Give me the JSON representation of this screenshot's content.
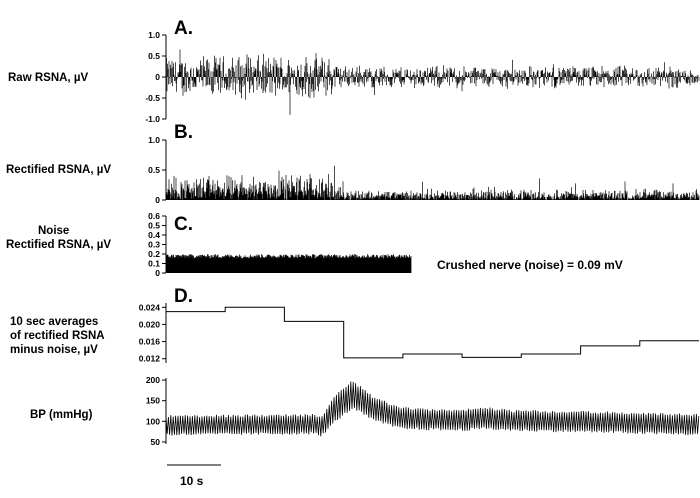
{
  "figure": {
    "scale_bar_label": "10 s",
    "scale_bar_seconds": 10,
    "trace_color": "#000000"
  },
  "chart_data": [
    {
      "panel": "A.",
      "type": "line",
      "ylabel": "Raw RSNA, µV",
      "ylim": [
        -1.0,
        1.0
      ],
      "yticks": [
        "1.0",
        "0.5",
        "0",
        "-0.5",
        "-1.0"
      ],
      "ytick_values": [
        1.0,
        0.5,
        0,
        -0.5,
        -1.0
      ],
      "amplitude_profile": [
        {
          "t": 0.0,
          "amp": 0.55
        },
        {
          "t": 0.3,
          "amp": 0.62
        },
        {
          "t": 0.33,
          "amp": 0.3
        },
        {
          "t": 1.0,
          "amp": 0.3
        }
      ]
    },
    {
      "panel": "B.",
      "type": "line",
      "ylabel": "Rectified RSNA, µV",
      "ylim": [
        0,
        1.0
      ],
      "yticks": [
        "1.0",
        "0.5",
        "0"
      ],
      "ytick_values": [
        1.0,
        0.5,
        0
      ],
      "amplitude_profile": [
        {
          "t": 0.0,
          "amp": 0.45
        },
        {
          "t": 0.3,
          "amp": 0.5
        },
        {
          "t": 0.33,
          "amp": 0.2
        },
        {
          "t": 1.0,
          "amp": 0.2
        }
      ]
    },
    {
      "panel": "C.",
      "type": "line",
      "ylabel_lines": [
        "Noise",
        "Rectified RSNA, µV"
      ],
      "ylim": [
        0,
        0.6
      ],
      "yticks": [
        "0.6",
        "0.5",
        "0.4",
        "0.3",
        "0.2",
        "0.1",
        "0"
      ],
      "ytick_values": [
        0.6,
        0.5,
        0.4,
        0.3,
        0.2,
        0.1,
        0
      ],
      "noise_level": 0.18,
      "annotation": "Crushed nerve (noise) = 0.09 mV"
    },
    {
      "panel": "D.",
      "type": "line",
      "ylabel_lines": [
        "10 sec averages",
        "of rectified RSNA",
        "minus noise, µV"
      ],
      "ylim": [
        0.011,
        0.025
      ],
      "yticks": [
        "0.024",
        "0.020",
        "0.016",
        "0.012"
      ],
      "ytick_values": [
        0.024,
        0.02,
        0.016,
        0.012
      ],
      "step_series": {
        "name": "",
        "values": [
          0.023,
          0.024,
          0.0207,
          0.0122,
          0.0131,
          0.0123,
          0.0131,
          0.015,
          0.0162
        ]
      }
    },
    {
      "panel": "",
      "type": "line",
      "ylabel": "BP (mmHg)",
      "ylim": [
        45,
        205
      ],
      "yticks": [
        "200",
        "150",
        "100",
        "50"
      ],
      "ytick_values": [
        200,
        150,
        100,
        50
      ],
      "bp_profile": [
        {
          "t": 0.0,
          "dia": 65,
          "sys": 115
        },
        {
          "t": 0.28,
          "dia": 68,
          "sys": 118
        },
        {
          "t": 0.29,
          "dia": 60,
          "sys": 110
        },
        {
          "t": 0.32,
          "dia": 100,
          "sys": 170
        },
        {
          "t": 0.35,
          "dia": 130,
          "sys": 200
        },
        {
          "t": 0.39,
          "dia": 100,
          "sys": 160
        },
        {
          "t": 0.44,
          "dia": 80,
          "sys": 135
        },
        {
          "t": 0.55,
          "dia": 76,
          "sys": 128
        },
        {
          "t": 0.6,
          "dia": 80,
          "sys": 135
        },
        {
          "t": 0.65,
          "dia": 76,
          "sys": 128
        },
        {
          "t": 0.8,
          "dia": 72,
          "sys": 125
        },
        {
          "t": 1.0,
          "dia": 65,
          "sys": 118
        }
      ]
    }
  ]
}
